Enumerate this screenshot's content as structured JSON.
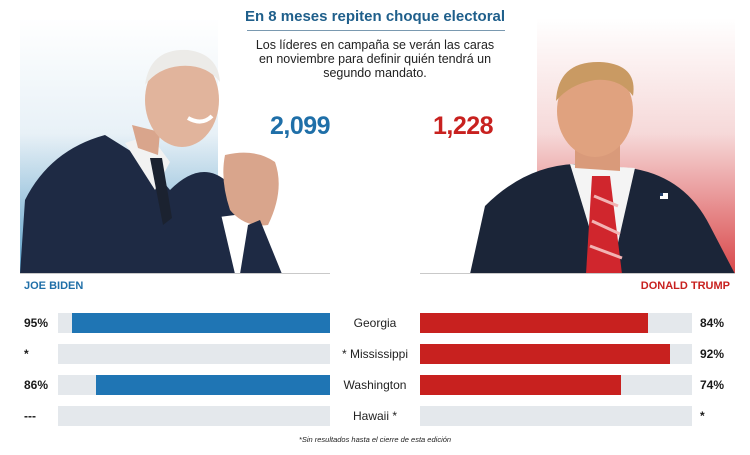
{
  "headline": "En 8 meses repiten choque electoral",
  "subhead": "Los líderes en campaña se verán las caras en noviembre para definir quién tendrá un segundo mandato.",
  "colors": {
    "biden": "#1f75b4",
    "trump": "#c8211f",
    "track": "#e4e8ec",
    "headline": "#1f5f8b"
  },
  "chart_data": {
    "type": "bar",
    "delegates": {
      "biden": "2,099",
      "trump": "1,228"
    },
    "candidates": {
      "left": "JOE BIDEN",
      "right": "DONALD TRUMP"
    },
    "categories": [
      "Georgia",
      "* Mississippi",
      "Washington",
      "Hawaii *"
    ],
    "series": [
      {
        "name": "JOE BIDEN",
        "values": [
          95,
          null,
          86,
          null
        ],
        "labels": [
          "95%",
          "*",
          "86%",
          "---"
        ]
      },
      {
        "name": "DONALD TRUMP",
        "values": [
          84,
          92,
          74,
          null
        ],
        "labels": [
          "84%",
          "92%",
          "74%",
          "*"
        ]
      }
    ],
    "ylim": [
      0,
      100
    ]
  },
  "footnote": "*Sin resultados hasta el cierre de esta edición"
}
